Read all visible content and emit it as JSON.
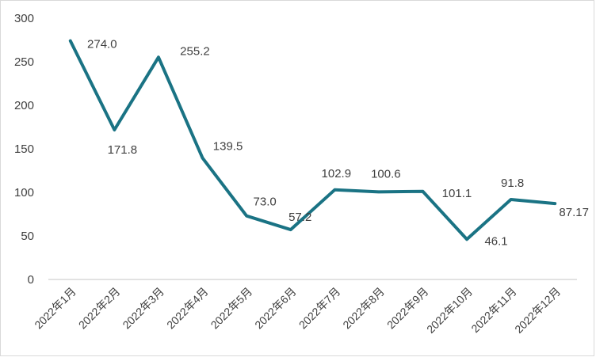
{
  "chart_data": {
    "type": "line",
    "title": "",
    "xlabel": "",
    "ylabel": "",
    "categories": [
      "2022年1月",
      "2022年2月",
      "2022年3月",
      "2022年4月",
      "2022年5月",
      "2022年6月",
      "2022年7月",
      "2022年8月",
      "2022年9月",
      "2022年10月",
      "2022年11月",
      "2022年12月"
    ],
    "series": [
      {
        "name": "",
        "values": [
          274.0,
          171.8,
          255.2,
          139.5,
          73.0,
          57.2,
          102.9,
          100.6,
          101.1,
          46.1,
          91.8,
          87.17
        ],
        "labels": [
          "274.0",
          "171.8",
          "255.2",
          "139.5",
          "73.0",
          "57.2",
          "102.9",
          "100.6",
          "101.1",
          "46.1",
          "91.8",
          "87.17"
        ]
      }
    ],
    "ylim": [
      0,
      300
    ],
    "yticks": [
      "0",
      "50",
      "100",
      "150",
      "200",
      "250",
      "300"
    ],
    "grid": false,
    "legend": "none",
    "line_color": "#1a7384"
  }
}
